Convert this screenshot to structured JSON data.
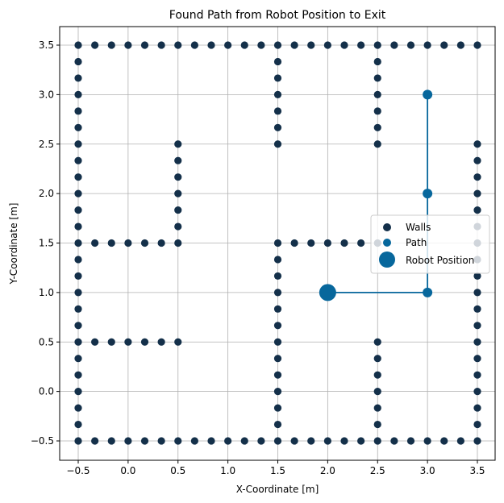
{
  "chart_data": {
    "type": "scatter",
    "title": "Found Path from Robot Position to Exit",
    "xlabel": "X-Coordinate [m]",
    "ylabel": "Y-Coordinate [m]",
    "xlim": [
      -0.7,
      3.7
    ],
    "ylim": [
      -0.7,
      3.7
    ],
    "xticks": [
      -0.5,
      0.0,
      0.5,
      1.0,
      1.5,
      2.0,
      2.5,
      3.0,
      3.5
    ],
    "yticks": [
      -0.5,
      0.0,
      0.5,
      1.0,
      1.5,
      2.0,
      2.5,
      3.0,
      3.5
    ],
    "xtick_labels": [
      "−0.5",
      "0.0",
      "0.5",
      "1.0",
      "1.5",
      "2.0",
      "2.5",
      "3.0",
      "3.5"
    ],
    "ytick_labels": [
      "−0.5",
      "0.0",
      "0.5",
      "1.0",
      "1.5",
      "2.0",
      "2.5",
      "3.0",
      "3.5"
    ],
    "grid": true,
    "legend_position": "center-right",
    "colors": {
      "walls": "#14304a",
      "path": "#07679c",
      "robot": "#07679c"
    },
    "walls": {
      "name": "Walls",
      "segments": [
        {
          "axis": "h",
          "fixed": 3.5,
          "from": -0.5,
          "to": 3.5
        },
        {
          "axis": "h",
          "fixed": -0.5,
          "from": -0.5,
          "to": 3.5
        },
        {
          "axis": "v",
          "fixed": -0.5,
          "from": -0.5,
          "to": 3.5
        },
        {
          "axis": "v",
          "fixed": 3.5,
          "from": -0.5,
          "to": -0.5
        },
        {
          "axis": "v",
          "fixed": 3.5,
          "from": -0.5,
          "to": 2.5
        },
        {
          "axis": "h",
          "fixed": 1.5,
          "from": -0.5,
          "to": 0.5
        },
        {
          "axis": "h",
          "fixed": 0.5,
          "from": -0.5,
          "to": 0.5
        },
        {
          "axis": "v",
          "fixed": 0.5,
          "from": 1.5,
          "to": 2.5
        },
        {
          "axis": "v",
          "fixed": 1.5,
          "from": 2.5,
          "to": 3.5
        },
        {
          "axis": "v",
          "fixed": 2.5,
          "from": 2.5,
          "to": 3.5
        },
        {
          "axis": "v",
          "fixed": 1.5,
          "from": -0.5,
          "to": 1.5
        },
        {
          "axis": "h",
          "fixed": 1.5,
          "from": 1.5,
          "to": 2.5
        },
        {
          "axis": "v",
          "fixed": 2.5,
          "from": -0.5,
          "to": 0.5
        }
      ]
    },
    "path": {
      "name": "Path",
      "x": [
        2.0,
        3.0,
        3.0,
        3.0
      ],
      "y": [
        1.0,
        1.0,
        2.0,
        3.0
      ]
    },
    "robot": {
      "name": "Robot Position",
      "x": 2.0,
      "y": 1.0
    }
  }
}
